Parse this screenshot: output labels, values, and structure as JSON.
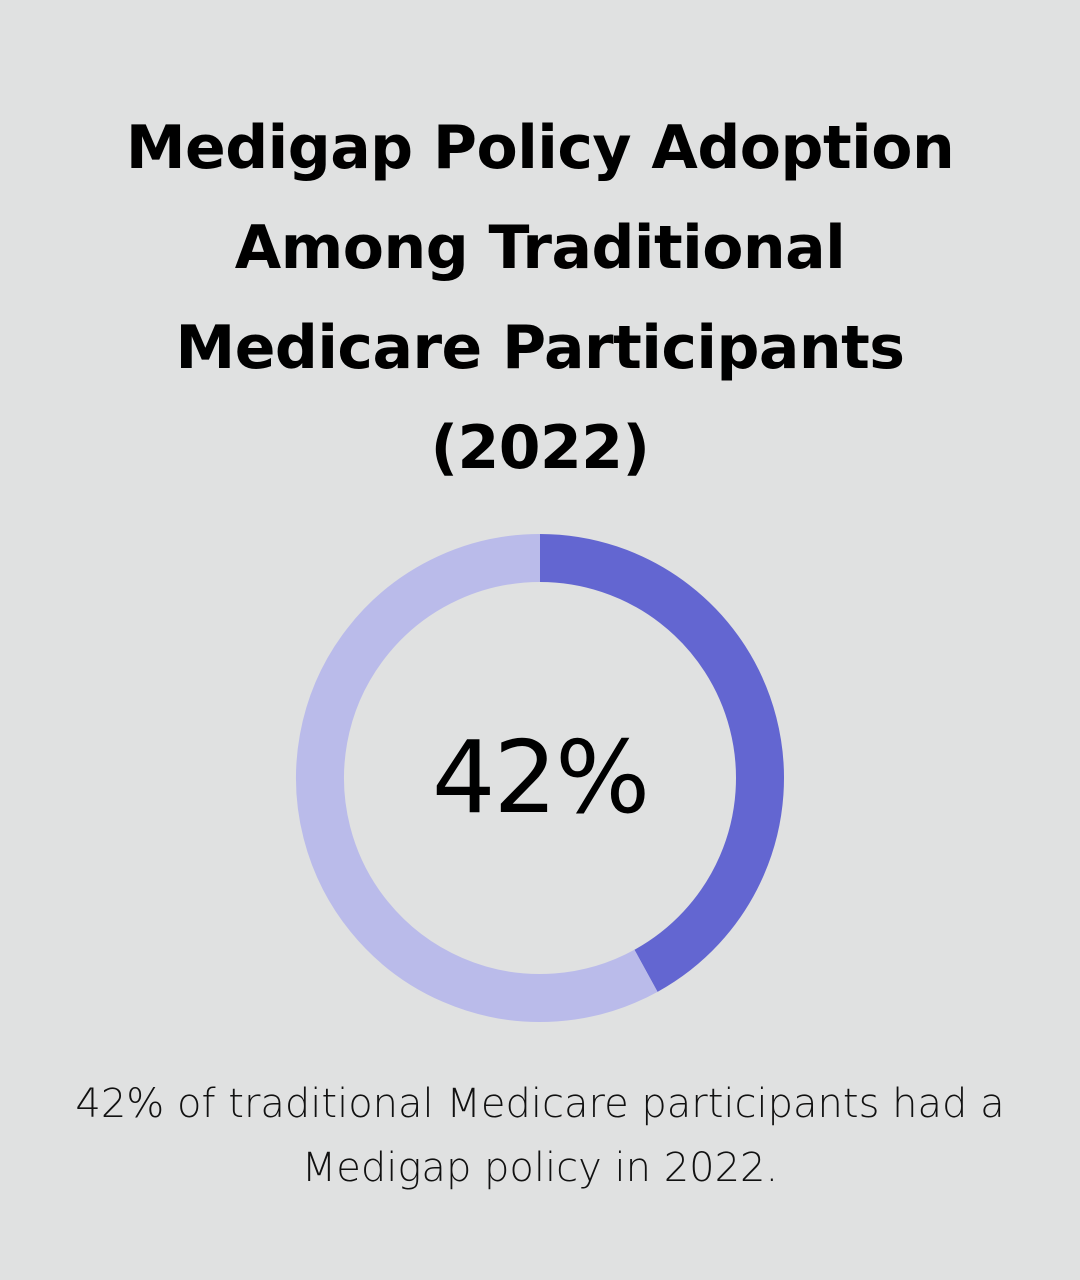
{
  "title_lines": [
    "Medigap Policy Adoption",
    "Among Traditional",
    "Medicare Participants",
    "(2022)"
  ],
  "center_label": "42%",
  "caption_lines": [
    "42% of traditional Medicare participants had a",
    "Medigap policy in 2022."
  ],
  "colors": {
    "background": "#e0e1e1",
    "value_arc": "#6366d1",
    "remainder_arc": "#babbea"
  },
  "chart_data": {
    "type": "pie",
    "title": "Medigap Policy Adoption Among Traditional Medicare Participants (2022)",
    "values": [
      42,
      58
    ],
    "unit": "%",
    "center_label": "42%"
  }
}
